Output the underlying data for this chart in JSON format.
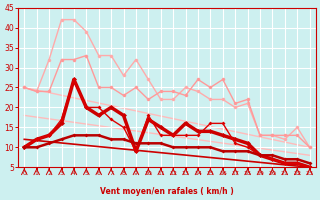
{
  "xlabel": "Vent moyen/en rafales ( km/h )",
  "bg_color": "#cdf0f0",
  "grid_color": "#aadddd",
  "x_ticks": [
    0,
    1,
    2,
    3,
    4,
    5,
    6,
    7,
    8,
    9,
    10,
    11,
    12,
    13,
    14,
    15,
    16,
    17,
    18,
    19,
    20,
    21,
    22,
    23
  ],
  "ylim": [
    5,
    45
  ],
  "yticks": [
    5,
    10,
    15,
    20,
    25,
    30,
    35,
    40,
    45
  ],
  "lines": [
    {
      "x": [
        0,
        1,
        2,
        3,
        4,
        5,
        6,
        7,
        8,
        9,
        10,
        11,
        12,
        13,
        14,
        15,
        16,
        17,
        18,
        19,
        20,
        21,
        22,
        23
      ],
      "y": [
        25,
        24,
        32,
        42,
        42,
        39,
        33,
        33,
        28,
        32,
        27,
        22,
        22,
        25,
        24,
        22,
        22,
        20,
        21,
        13,
        13,
        12,
        15,
        10
      ],
      "color": "#ffaaaa",
      "lw": 1.0,
      "marker": "o",
      "ms": 2.5,
      "zorder": 2
    },
    {
      "x": [
        0,
        1,
        2,
        3,
        4,
        5,
        6,
        7,
        8,
        9,
        10,
        11,
        12,
        13,
        14,
        15,
        16,
        17,
        18,
        19,
        20,
        21,
        22,
        23
      ],
      "y": [
        25,
        24,
        24,
        32,
        32,
        33,
        25,
        25,
        23,
        25,
        22,
        24,
        24,
        23,
        27,
        25,
        27,
        21,
        22,
        13,
        13,
        13,
        13,
        10
      ],
      "color": "#ff9999",
      "lw": 1.0,
      "marker": "o",
      "ms": 2.5,
      "zorder": 3
    },
    {
      "x": [
        0,
        23
      ],
      "y": [
        25,
        10
      ],
      "color": "#ffbbbb",
      "lw": 1.0,
      "marker": null,
      "ms": 0,
      "zorder": 1
    },
    {
      "x": [
        0,
        23
      ],
      "y": [
        18,
        8
      ],
      "color": "#ffbbbb",
      "lw": 1.0,
      "marker": null,
      "ms": 0,
      "zorder": 1
    },
    {
      "x": [
        0,
        1,
        2,
        3,
        4,
        5,
        6,
        7,
        8,
        9,
        10,
        11,
        12,
        13,
        14,
        15,
        16,
        17,
        18,
        19,
        20,
        21,
        22,
        23
      ],
      "y": [
        10,
        12,
        13,
        17,
        27,
        20,
        20,
        17,
        15,
        9,
        18,
        13,
        13,
        13,
        13,
        16,
        16,
        11,
        10,
        8,
        7,
        6,
        6,
        5
      ],
      "color": "#dd0000",
      "lw": 1.0,
      "marker": "D",
      "ms": 2.0,
      "zorder": 5
    },
    {
      "x": [
        0,
        1,
        2,
        3,
        4,
        5,
        6,
        7,
        8,
        9,
        10,
        11,
        12,
        13,
        14,
        15,
        16,
        17,
        18,
        19,
        20,
        21,
        22,
        23
      ],
      "y": [
        10,
        12,
        13,
        16,
        27,
        20,
        18,
        20,
        18,
        9,
        17,
        15,
        13,
        16,
        14,
        14,
        13,
        12,
        11,
        8,
        7,
        6,
        6,
        5
      ],
      "color": "#cc0000",
      "lw": 2.5,
      "marker": "D",
      "ms": 2.5,
      "zorder": 4
    },
    {
      "x": [
        0,
        1,
        2,
        3,
        4,
        5,
        6,
        7,
        8,
        9,
        10,
        11,
        12,
        13,
        14,
        15,
        16,
        17,
        18,
        19,
        20,
        21,
        22,
        23
      ],
      "y": [
        10,
        10,
        11,
        12,
        13,
        13,
        13,
        12,
        12,
        11,
        11,
        11,
        10,
        10,
        10,
        10,
        9,
        9,
        9,
        8,
        8,
        7,
        7,
        6
      ],
      "color": "#bb0000",
      "lw": 1.8,
      "marker": "D",
      "ms": 2.0,
      "zorder": 6
    },
    {
      "x": [
        0,
        23
      ],
      "y": [
        12,
        5
      ],
      "color": "#cc0000",
      "lw": 1.2,
      "marker": null,
      "ms": 0,
      "zorder": 3
    }
  ],
  "arrow_color": "#cc0000",
  "tick_color": "#cc0000",
  "label_color": "#cc0000"
}
